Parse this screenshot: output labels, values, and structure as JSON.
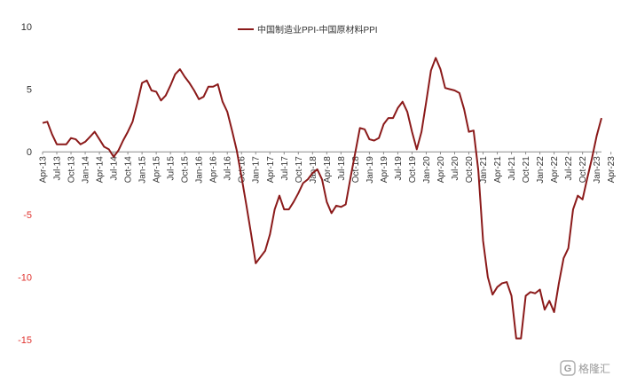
{
  "chart_data": {
    "type": "line",
    "title": "",
    "xlabel": "",
    "ylabel": "",
    "ylim": [
      -15,
      10
    ],
    "yticks": [
      10,
      5,
      0,
      -5,
      -10,
      -15
    ],
    "grid": false,
    "legend_position": "top-center",
    "x_tick_labels": [
      "Apr-13",
      "Jul-13",
      "Oct-13",
      "Jan-14",
      "Apr-14",
      "Jul-14",
      "Oct-14",
      "Jan-15",
      "Apr-15",
      "Jul-15",
      "Oct-15",
      "Jan-16",
      "Apr-16",
      "Jul-16",
      "Oct-16",
      "Jan-17",
      "Apr-17",
      "Jul-17",
      "Oct-17",
      "Jan-18",
      "Apr-18",
      "Jul-18",
      "Oct-18",
      "Jan-19",
      "Apr-19",
      "Jul-19",
      "Oct-19",
      "Jan-20",
      "Apr-20",
      "Jul-20",
      "Oct-20",
      "Jan-21",
      "Apr-21",
      "Jul-21",
      "Oct-21",
      "Jan-22",
      "Apr-22",
      "Jul-22",
      "Oct-22",
      "Jan-23",
      "Apr-23"
    ],
    "series": [
      {
        "name": "中国制造业PPI-中国原材料PPI",
        "color": "#8b1a1a",
        "values": [
          2.3,
          2.4,
          1.4,
          0.6,
          0.6,
          0.6,
          1.1,
          1.0,
          0.6,
          0.8,
          1.2,
          1.6,
          1.0,
          0.4,
          0.2,
          -0.4,
          0.1,
          0.9,
          1.6,
          2.4,
          3.9,
          5.5,
          5.7,
          4.9,
          4.8,
          4.1,
          4.5,
          5.3,
          6.2,
          6.6,
          6.0,
          5.5,
          4.9,
          4.2,
          4.4,
          5.2,
          5.2,
          5.4,
          4.0,
          3.2,
          1.7,
          0.1,
          -2.0,
          -4.2,
          -6.5,
          -8.9,
          -8.4,
          -7.9,
          -6.6,
          -4.6,
          -3.5,
          -4.6,
          -4.6,
          -4.0,
          -3.3,
          -2.5,
          -2.2,
          -1.7,
          -1.4,
          -2.2,
          -4.0,
          -4.9,
          -4.3,
          -4.4,
          -4.2,
          -2.1,
          -0.1,
          1.9,
          1.8,
          1.0,
          0.9,
          1.1,
          2.2,
          2.7,
          2.7,
          3.5,
          4.0,
          3.2,
          1.6,
          0.2,
          1.6,
          4.0,
          6.5,
          7.5,
          6.6,
          5.1,
          5.0,
          4.9,
          4.7,
          3.4,
          1.6,
          1.7,
          -1.5,
          -7.1,
          -10.0,
          -11.4,
          -10.8,
          -10.5,
          -10.4,
          -11.5,
          -14.9,
          -14.9,
          -11.5,
          -11.2,
          -11.3,
          -11.0,
          -12.6,
          -11.9,
          -12.8,
          -10.5,
          -8.5,
          -7.7,
          -4.6,
          -3.5,
          -3.8,
          -2.1,
          -0.5,
          1.3,
          2.7
        ]
      }
    ]
  },
  "legend": {
    "label": "中国制造业PPI-中国原材料PPI"
  },
  "watermark": {
    "text": "格隆汇",
    "icon": "logo-mark"
  }
}
